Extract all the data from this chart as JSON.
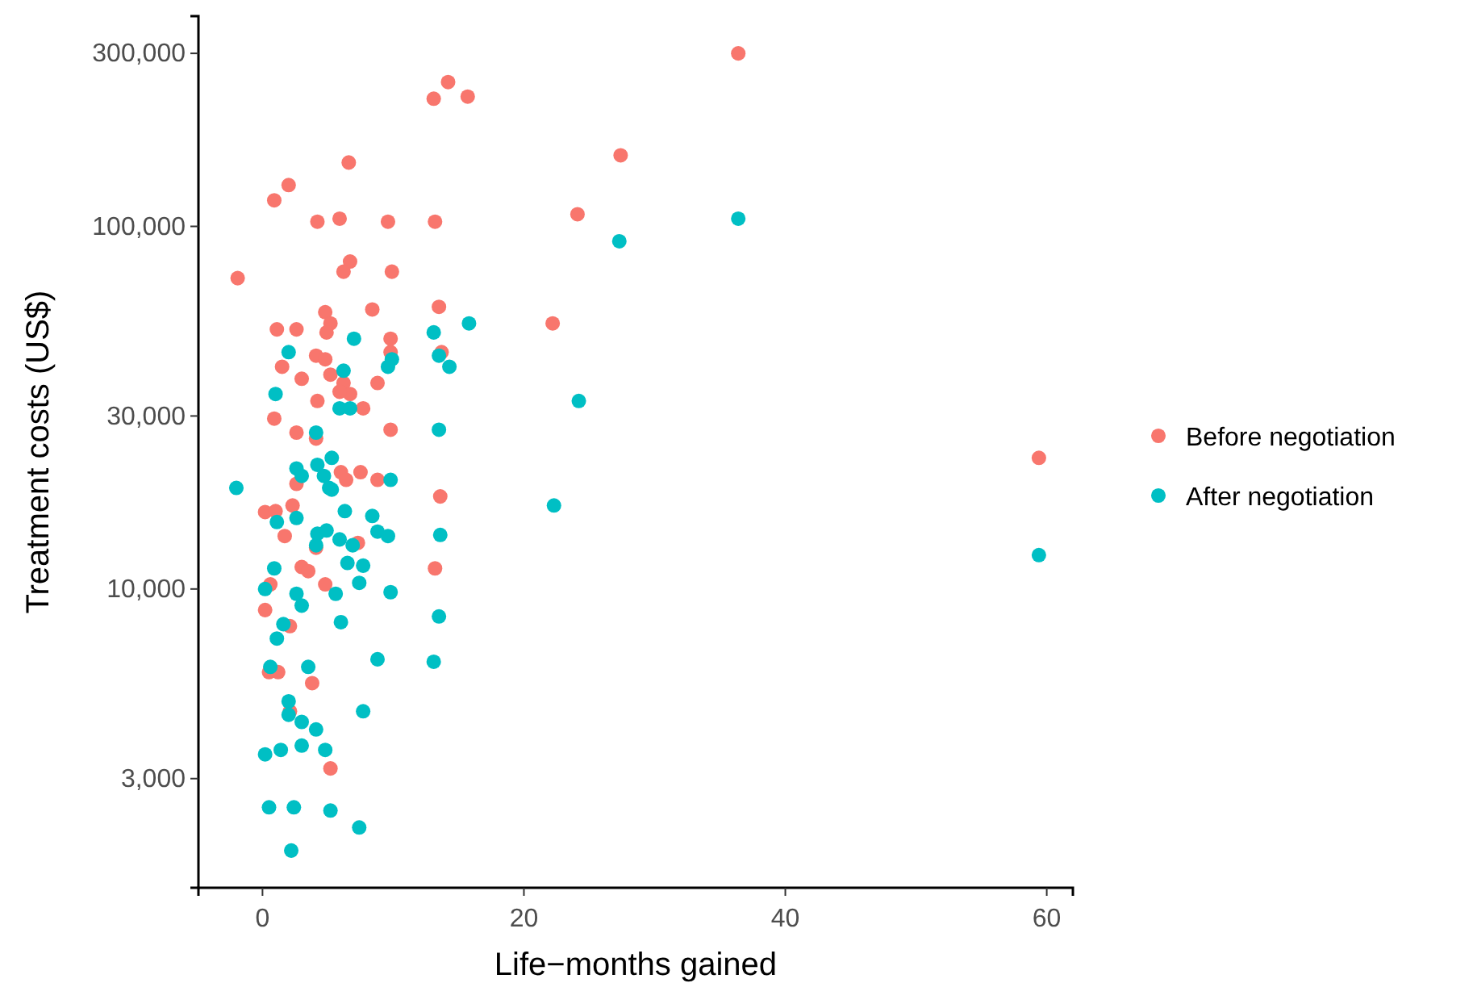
{
  "chart_data": {
    "type": "scatter",
    "xlabel": "Life−months gained",
    "ylabel": "Treatment costs (US$)",
    "xlim": [
      -4.9,
      62
    ],
    "xticks": [
      0,
      20,
      40,
      60
    ],
    "ylim": [
      1500,
      380000
    ],
    "yticks": [
      {
        "value": 3000,
        "label": "3,000"
      },
      {
        "value": 10000,
        "label": "10,000"
      },
      {
        "value": 30000,
        "label": "30,000"
      },
      {
        "value": 100000,
        "label": "100,000"
      },
      {
        "value": 300000,
        "label": "300,000"
      }
    ],
    "log": "y",
    "grid": false,
    "legend": "right",
    "marker": "circle",
    "series": [
      {
        "name": "Before negotiation",
        "color": "#f8766d",
        "x": [
          -1.9,
          0.9,
          2,
          4.2,
          5.9,
          6.6,
          9.6,
          13.2,
          13.1,
          14.2,
          15.7,
          27.4,
          24.1,
          36.4,
          22.2,
          59.4,
          6.7,
          6.2,
          9.9,
          4.8,
          5.2,
          4.9,
          8.4,
          13.5,
          1.1,
          2.6,
          9.8,
          9.8,
          13.7,
          4.1,
          4.8,
          1.5,
          5.2,
          3,
          8.8,
          6.2,
          6.7,
          5.9,
          4.2,
          7.7,
          0.9,
          2.6,
          4.1,
          9.8,
          6,
          7.5,
          6.4,
          8.8,
          2.6,
          13.6,
          0.2,
          1,
          2.3,
          1.7,
          4.1,
          7.3,
          3,
          3.5,
          4.8,
          13.2,
          0.6,
          0.2,
          2.1,
          0.5,
          1.2,
          3.8,
          2.1,
          5.2
        ],
        "values": [
          72000,
          118000,
          130000,
          103000,
          105000,
          150000,
          103000,
          103000,
          225000,
          250000,
          228000,
          157000,
          108000,
          300000,
          54000,
          23000,
          80000,
          75000,
          75000,
          58000,
          54000,
          51000,
          59000,
          60000,
          52000,
          52000,
          49000,
          45000,
          45000,
          44000,
          43000,
          41000,
          39000,
          38000,
          37000,
          37000,
          34500,
          35000,
          33000,
          31500,
          29500,
          27000,
          26000,
          27500,
          21000,
          21000,
          20000,
          20000,
          19500,
          18000,
          16300,
          16400,
          17000,
          14000,
          13000,
          13400,
          11500,
          11200,
          10300,
          11400,
          10300,
          8750,
          7900,
          5900,
          5900,
          5500,
          4600,
          3200
        ]
      },
      {
        "name": "After negotiation",
        "color": "#00bfc4",
        "x": [
          -2,
          36.4,
          27.3,
          24.2,
          22.3,
          59.4,
          15.8,
          14.3,
          13.1,
          13.5,
          13.5,
          13.6,
          13.5,
          13.1,
          7,
          2,
          9.9,
          9.6,
          6.2,
          1,
          5.9,
          6.7,
          4.1,
          5.3,
          2.6,
          4.2,
          3,
          4.7,
          5.1,
          9.8,
          5.3,
          6.3,
          8.4,
          1.1,
          2.6,
          4.2,
          4.9,
          5.9,
          6.9,
          8.8,
          9.6,
          4.1,
          0.9,
          6.5,
          7.7,
          0.2,
          7.4,
          9.8,
          5.6,
          2.6,
          3,
          6,
          1.6,
          1.1,
          0.6,
          3.5,
          8.8,
          2,
          2,
          3,
          4.1,
          7.7,
          1.4,
          0.2,
          3,
          4.8,
          0.5,
          2.4,
          5.2,
          7.4,
          2.2
        ],
        "values": [
          19000,
          105000,
          91000,
          33000,
          17000,
          12400,
          54000,
          41000,
          51000,
          44000,
          27500,
          14100,
          8400,
          6300,
          49000,
          45000,
          43000,
          41000,
          40000,
          34500,
          31500,
          31500,
          27000,
          23000,
          21500,
          22000,
          20500,
          20500,
          19000,
          20000,
          18800,
          16400,
          15900,
          15300,
          15700,
          14200,
          14500,
          13700,
          13200,
          14400,
          14000,
          13200,
          11400,
          11800,
          11600,
          10000,
          10400,
          9800,
          9700,
          9700,
          9000,
          8100,
          8000,
          7300,
          6100,
          6100,
          6400,
          4900,
          4500,
          4300,
          4100,
          4600,
          3600,
          3500,
          3700,
          3600,
          2500,
          2500,
          2450,
          2200,
          1900
        ]
      }
    ]
  }
}
